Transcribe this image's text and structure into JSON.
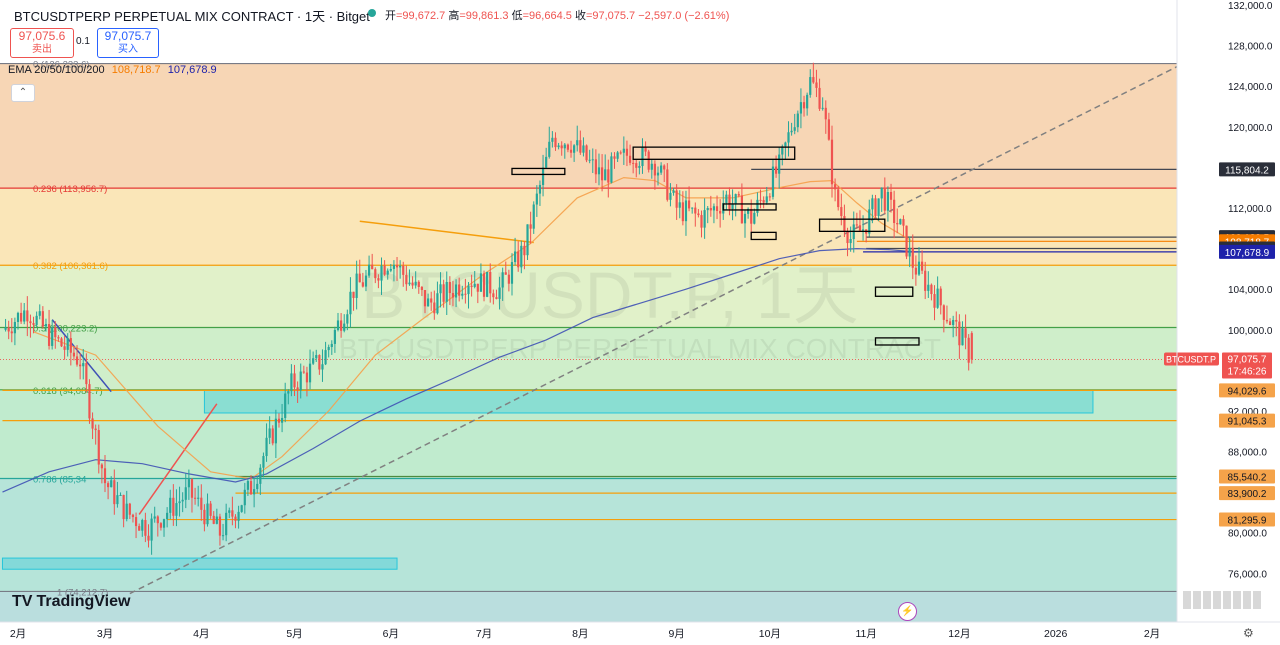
{
  "header": {
    "symbol": "BTCUSDTPERP PERPETUAL MIX CONTRACT · 1天 · Bitget",
    "open_label": "开",
    "open": "=99,672.7",
    "high_label": "高",
    "high": "=99,861.3",
    "low_label": "低",
    "low": "=96,664.5",
    "close_label": "收",
    "close": "=97,075.7",
    "change": "−2,597.0 (−2.61%)"
  },
  "trade": {
    "sell_price": "97,075.6",
    "sell_label": "卖出",
    "spread": "0.1",
    "buy_price": "97,075.7",
    "buy_label": "买入"
  },
  "ema_legend": {
    "label": "EMA 20/50/100/200",
    "v1": "108,718.7",
    "v2": "107,678.9"
  },
  "collapse_glyph": "⌃",
  "watermark": {
    "big": "BTCUSDT.P, 1天",
    "small": "BTCUSDTPERP PERPETUAL MIX CONTRACT"
  },
  "logo": "TradingView",
  "lightning_glyph": "⚡",
  "settings_glyph": "⚙",
  "colors": {
    "up": "#26a69a",
    "down": "#ef5350",
    "ema_orange": "#f5a04a",
    "ema_blue": "#3f51b5",
    "fib_red": "#e53935",
    "fib_orange": "#f59e0b",
    "fib_green": "#43a047",
    "fib_teal": "#26a69a",
    "fib_gray": "#787b86"
  },
  "chart_data": {
    "type": "candlestick",
    "y_axis": {
      "min": 71200,
      "max": 132500,
      "ticks": [
        132000,
        128000,
        124000,
        120000,
        116000,
        112000,
        108000,
        104000,
        100000,
        96000,
        92000,
        88000,
        84000,
        80000,
        76000
      ],
      "tick_labels": [
        "132,000.0",
        "128,000.0",
        "124,000.0",
        "120,000.0",
        "116,000.0",
        "112,000.0",
        "108,000.0",
        "104,000.0",
        "100,000.0",
        "96,000.0",
        "92,000.0",
        "88,000.0",
        "84,000.0",
        "80,000.0",
        "76,000.0"
      ]
    },
    "x_axis": {
      "labels": [
        "2月",
        "3月",
        "4月",
        "5月",
        "6月",
        "7月",
        "8月",
        "9月",
        "10月",
        "11月",
        "12月",
        "2026",
        "2月"
      ],
      "label_days": [
        0,
        28,
        59,
        89,
        120,
        150,
        181,
        212,
        242,
        273,
        303,
        334,
        365
      ]
    },
    "fib_levels": [
      {
        "ratio": "0",
        "price": 126233.6,
        "text": "0 (126,233.6)",
        "color": "#787b86"
      },
      {
        "ratio": "0.236",
        "price": 113956.7,
        "text": "0.236 (113,956.7)",
        "color": "#e53935"
      },
      {
        "ratio": "0.382",
        "price": 106361.6,
        "text": "0.382 (106,361.6)",
        "color": "#f59e0b"
      },
      {
        "ratio": "0.5",
        "price": 100223.2,
        "text": "0.5 (100,223.2)",
        "color": "#43a047"
      },
      {
        "ratio": "0.618",
        "price": 94084.7,
        "text": "0.618 (94,084.7)",
        "color": "#43a047"
      },
      {
        "ratio": "0.786",
        "price": 85345,
        "text": "0.786 (85,34",
        "color": "#26a69a"
      },
      {
        "ratio": "1",
        "price": 74212.7,
        "text": "1 (74,212.7)",
        "color": "#787b86"
      }
    ],
    "horizontal_lines": [
      {
        "price": 115804.2,
        "label": "115,804.2",
        "color": "#434651",
        "day_start": 236
      },
      {
        "price": 109129.5,
        "label": "109,129.5",
        "color": "#434651",
        "day_start": 273
      },
      {
        "price": 108718.7,
        "label": "108,718.7",
        "color": "#f57c00",
        "day_start": 270
      },
      {
        "price": 108009.1,
        "label": "108,009.1",
        "color": "#434651",
        "day_start": 273
      },
      {
        "price": 107678.9,
        "label": "107,678.9",
        "color": "#1e22aa",
        "day_start": 272
      },
      {
        "price": 94029.6,
        "label": "94,029.6",
        "color": "#f59e0b",
        "day_start": -5
      },
      {
        "price": 91045.3,
        "label": "91,045.3",
        "color": "#f59e0b",
        "day_start": -5
      },
      {
        "price": 85540.2,
        "label": "85,540.2",
        "color": "#4c8a3f",
        "day_start": 70
      },
      {
        "price": 83900.2,
        "label": "83,900.2",
        "color": "#f59e0b",
        "day_start": 70
      },
      {
        "price": 81295.9,
        "label": "81,295.9",
        "color": "#f59e0b",
        "day_start": 48
      }
    ],
    "current_price": {
      "price": 97075.7,
      "symbol": "BTCUSDT.P",
      "value": "97,075.7",
      "countdown": "17:46:26"
    },
    "zones": [
      {
        "day_start": 60,
        "day_end": 346,
        "high": 94029.6,
        "low": 91800,
        "color": "#26c6da"
      },
      {
        "day_start": -5,
        "day_end": 122,
        "high": 77500,
        "low": 76400,
        "color": "#26c6da"
      }
    ],
    "boxes": [
      {
        "day_start": 159,
        "day_end": 176,
        "high": 115900,
        "low": 115400
      },
      {
        "day_start": 198,
        "day_end": 250,
        "high": 118000,
        "low": 116800
      },
      {
        "day_start": 227,
        "day_end": 244,
        "high": 112400,
        "low": 112000
      },
      {
        "day_start": 236,
        "day_end": 244,
        "high": 109600,
        "low": 108900
      },
      {
        "day_start": 258,
        "day_end": 279,
        "high": 110900,
        "low": 109700
      },
      {
        "day_start": 276,
        "day_end": 288,
        "high": 104200,
        "low": 103300
      },
      {
        "day_start": 276,
        "day_end": 290,
        "high": 99200,
        "low": 98500
      }
    ],
    "trendlines": [
      {
        "d1": 11,
        "p1": 101000,
        "d2": 30,
        "p2": 93900,
        "color": "#3f51b5",
        "dashed": false
      },
      {
        "d1": 110,
        "p1": 110700,
        "d2": 166,
        "p2": 108600,
        "color": "#f59e0b",
        "dashed": false
      },
      {
        "d1": 36,
        "p1": 74000,
        "d2": 375,
        "p2": 126233.6,
        "color": "#808080",
        "dashed": true
      },
      {
        "d1": 39,
        "p1": 81800,
        "d2": 64,
        "p2": 92700,
        "color": "#ef5350",
        "dashed": false
      }
    ],
    "ema_orange": [
      [
        5,
        99800
      ],
      [
        25,
        97500
      ],
      [
        45,
        90500
      ],
      [
        62,
        86000
      ],
      [
        75,
        85300
      ],
      [
        85,
        87500
      ],
      [
        100,
        92000
      ],
      [
        115,
        97500
      ],
      [
        130,
        101000
      ],
      [
        150,
        105500
      ],
      [
        165,
        108500
      ],
      [
        180,
        113000
      ],
      [
        195,
        115000
      ],
      [
        205,
        114700
      ],
      [
        215,
        113000
      ],
      [
        230,
        113000
      ],
      [
        245,
        114000
      ],
      [
        255,
        114600
      ],
      [
        262,
        114700
      ],
      [
        270,
        112500
      ],
      [
        278,
        110500
      ],
      [
        288,
        108700
      ]
    ],
    "ema_blue": [
      [
        -5,
        84000
      ],
      [
        10,
        86000
      ],
      [
        25,
        87200
      ],
      [
        40,
        86800
      ],
      [
        55,
        85800
      ],
      [
        70,
        85000
      ],
      [
        80,
        85800
      ],
      [
        95,
        88300
      ],
      [
        110,
        91000
      ],
      [
        125,
        93200
      ],
      [
        140,
        95200
      ],
      [
        155,
        97300
      ],
      [
        170,
        99000
      ],
      [
        185,
        101200
      ],
      [
        200,
        102600
      ],
      [
        215,
        104000
      ],
      [
        230,
        105500
      ],
      [
        245,
        107000
      ],
      [
        258,
        107800
      ],
      [
        270,
        108000
      ],
      [
        280,
        107900
      ],
      [
        288,
        107700
      ]
    ],
    "price_path": [
      [
        -5,
        100000
      ],
      [
        3,
        102000
      ],
      [
        10,
        99500
      ],
      [
        20,
        97000
      ],
      [
        28,
        85000
      ],
      [
        35,
        82000
      ],
      [
        42,
        80500
      ],
      [
        55,
        84000
      ],
      [
        65,
        80000
      ],
      [
        75,
        84500
      ],
      [
        88,
        94500
      ],
      [
        98,
        97000
      ],
      [
        108,
        104000
      ],
      [
        120,
        107000
      ],
      [
        132,
        102500
      ],
      [
        145,
        105000
      ],
      [
        155,
        104000
      ],
      [
        163,
        108000
      ],
      [
        172,
        119000
      ],
      [
        178,
        118500
      ],
      [
        188,
        115000
      ],
      [
        197,
        117500
      ],
      [
        205,
        116500
      ],
      [
        212,
        112000
      ],
      [
        220,
        111000
      ],
      [
        228,
        113000
      ],
      [
        236,
        111000
      ],
      [
        245,
        116000
      ],
      [
        250,
        121000
      ],
      [
        255,
        124500
      ],
      [
        259,
        122500
      ],
      [
        263,
        113000
      ],
      [
        268,
        109000
      ],
      [
        272,
        110000
      ],
      [
        278,
        113500
      ],
      [
        284,
        110000
      ],
      [
        288,
        106500
      ],
      [
        296,
        103000
      ],
      [
        303,
        99500
      ],
      [
        307,
        97075.7
      ]
    ],
    "last_candle": {
      "open": 99672.7,
      "high": 99861.3,
      "low": 96664.5,
      "close": 97075.7
    }
  }
}
